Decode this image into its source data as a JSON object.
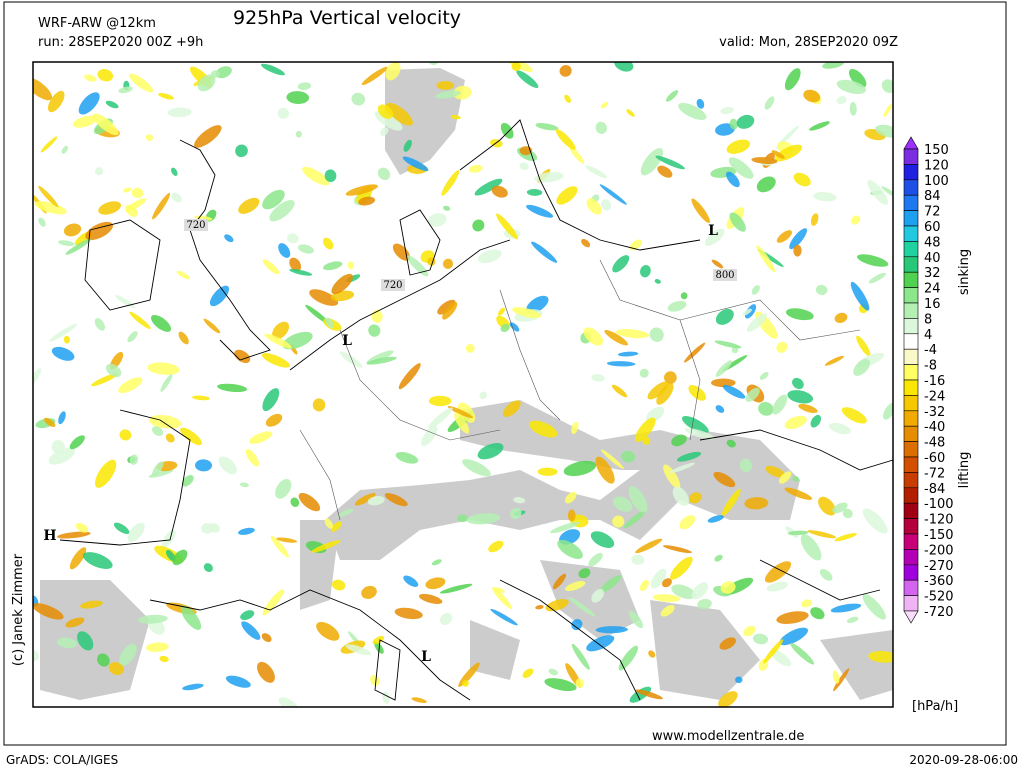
{
  "header": {
    "model": "WRF-ARW @12km",
    "title": "925hPa  Vertical velocity",
    "run": "run: 28SEP2020 00Z +9h",
    "valid": "valid: Mon, 28SEP2020 09Z"
  },
  "map_labels": [
    {
      "text": "720"
    },
    {
      "text": "720"
    },
    {
      "text": "800"
    },
    {
      "text": "L"
    },
    {
      "text": "L"
    },
    {
      "text": "L"
    },
    {
      "text": "H"
    }
  ],
  "colorbar": {
    "levels": [
      150,
      120,
      100,
      84,
      72,
      60,
      48,
      40,
      32,
      24,
      16,
      8,
      4,
      -4,
      -8,
      -16,
      -24,
      -32,
      -40,
      -48,
      -60,
      -72,
      -84,
      -100,
      -120,
      -150,
      -200,
      -270,
      -360,
      -520,
      -720
    ],
    "colors": [
      "#9b30ff",
      "#7b2ee0",
      "#2020e0",
      "#1e50e6",
      "#1e78f0",
      "#1ea0f0",
      "#20c8e0",
      "#20d2a0",
      "#28c878",
      "#50d250",
      "#8ce68c",
      "#b4f0b4",
      "#dcf8dc",
      "#ffffff",
      "#fafac8",
      "#ffff64",
      "#fae600",
      "#f5c800",
      "#f0aa00",
      "#e68c00",
      "#dc6e00",
      "#d25000",
      "#c83c00",
      "#b41e00",
      "#a00014",
      "#b4003c",
      "#c80078",
      "#b400b4",
      "#a000dc",
      "#d264f0",
      "#f0b4f5",
      "#fadcfa"
    ],
    "upper_label": "sinking",
    "lower_label": "lifting",
    "unit": "[hPa/h]"
  },
  "footer": {
    "credit": "(c) Janek Zimmer",
    "website": "www.modellzentrale.de",
    "software": "GrADS: COLA/IGES",
    "timestamp": "2020-09-28-06:00"
  }
}
